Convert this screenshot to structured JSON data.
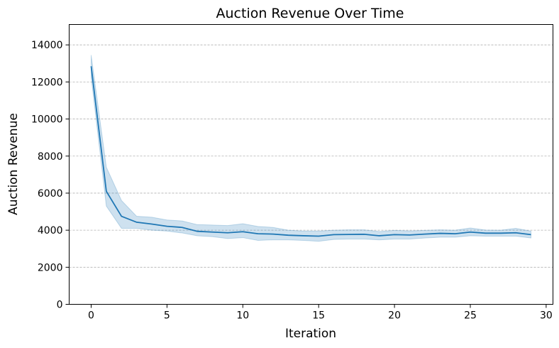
{
  "chart_data": {
    "type": "line",
    "title": "Auction Revenue Over Time",
    "xlabel": "Iteration",
    "ylabel": "Auction Revenue",
    "xlim": [
      -1.45,
      30.45
    ],
    "ylim": [
      0,
      15100
    ],
    "xticks": [
      0,
      5,
      10,
      15,
      20,
      25,
      30
    ],
    "yticks": [
      0,
      2000,
      4000,
      6000,
      8000,
      10000,
      12000,
      14000
    ],
    "grid": "y-dashed",
    "line_color": "#1f77b4",
    "band_color": "#1f77b4",
    "series": [
      {
        "x": [
          0,
          1,
          2,
          3,
          4,
          5,
          6,
          7,
          8,
          9,
          10,
          11,
          12,
          13,
          14,
          15,
          16,
          17,
          18,
          19,
          20,
          21,
          22,
          23,
          24,
          25,
          26,
          27,
          28,
          29
        ],
        "values": [
          12850,
          6100,
          4750,
          4430,
          4330,
          4210,
          4150,
          3940,
          3900,
          3860,
          3920,
          3810,
          3790,
          3730,
          3700,
          3680,
          3760,
          3770,
          3780,
          3700,
          3760,
          3740,
          3790,
          3830,
          3810,
          3900,
          3840,
          3840,
          3860,
          3760
        ],
        "lower": [
          12250,
          5300,
          4100,
          4100,
          4000,
          3950,
          3850,
          3700,
          3650,
          3550,
          3600,
          3450,
          3480,
          3480,
          3450,
          3400,
          3500,
          3520,
          3520,
          3480,
          3520,
          3520,
          3580,
          3620,
          3620,
          3700,
          3680,
          3680,
          3680,
          3580
        ],
        "upper": [
          13450,
          7400,
          5600,
          4750,
          4700,
          4550,
          4500,
          4300,
          4280,
          4250,
          4350,
          4200,
          4150,
          4000,
          3950,
          3950,
          4000,
          4020,
          4020,
          3930,
          3990,
          3960,
          3990,
          4020,
          4000,
          4120,
          4010,
          4000,
          4100,
          3950
        ]
      }
    ]
  }
}
